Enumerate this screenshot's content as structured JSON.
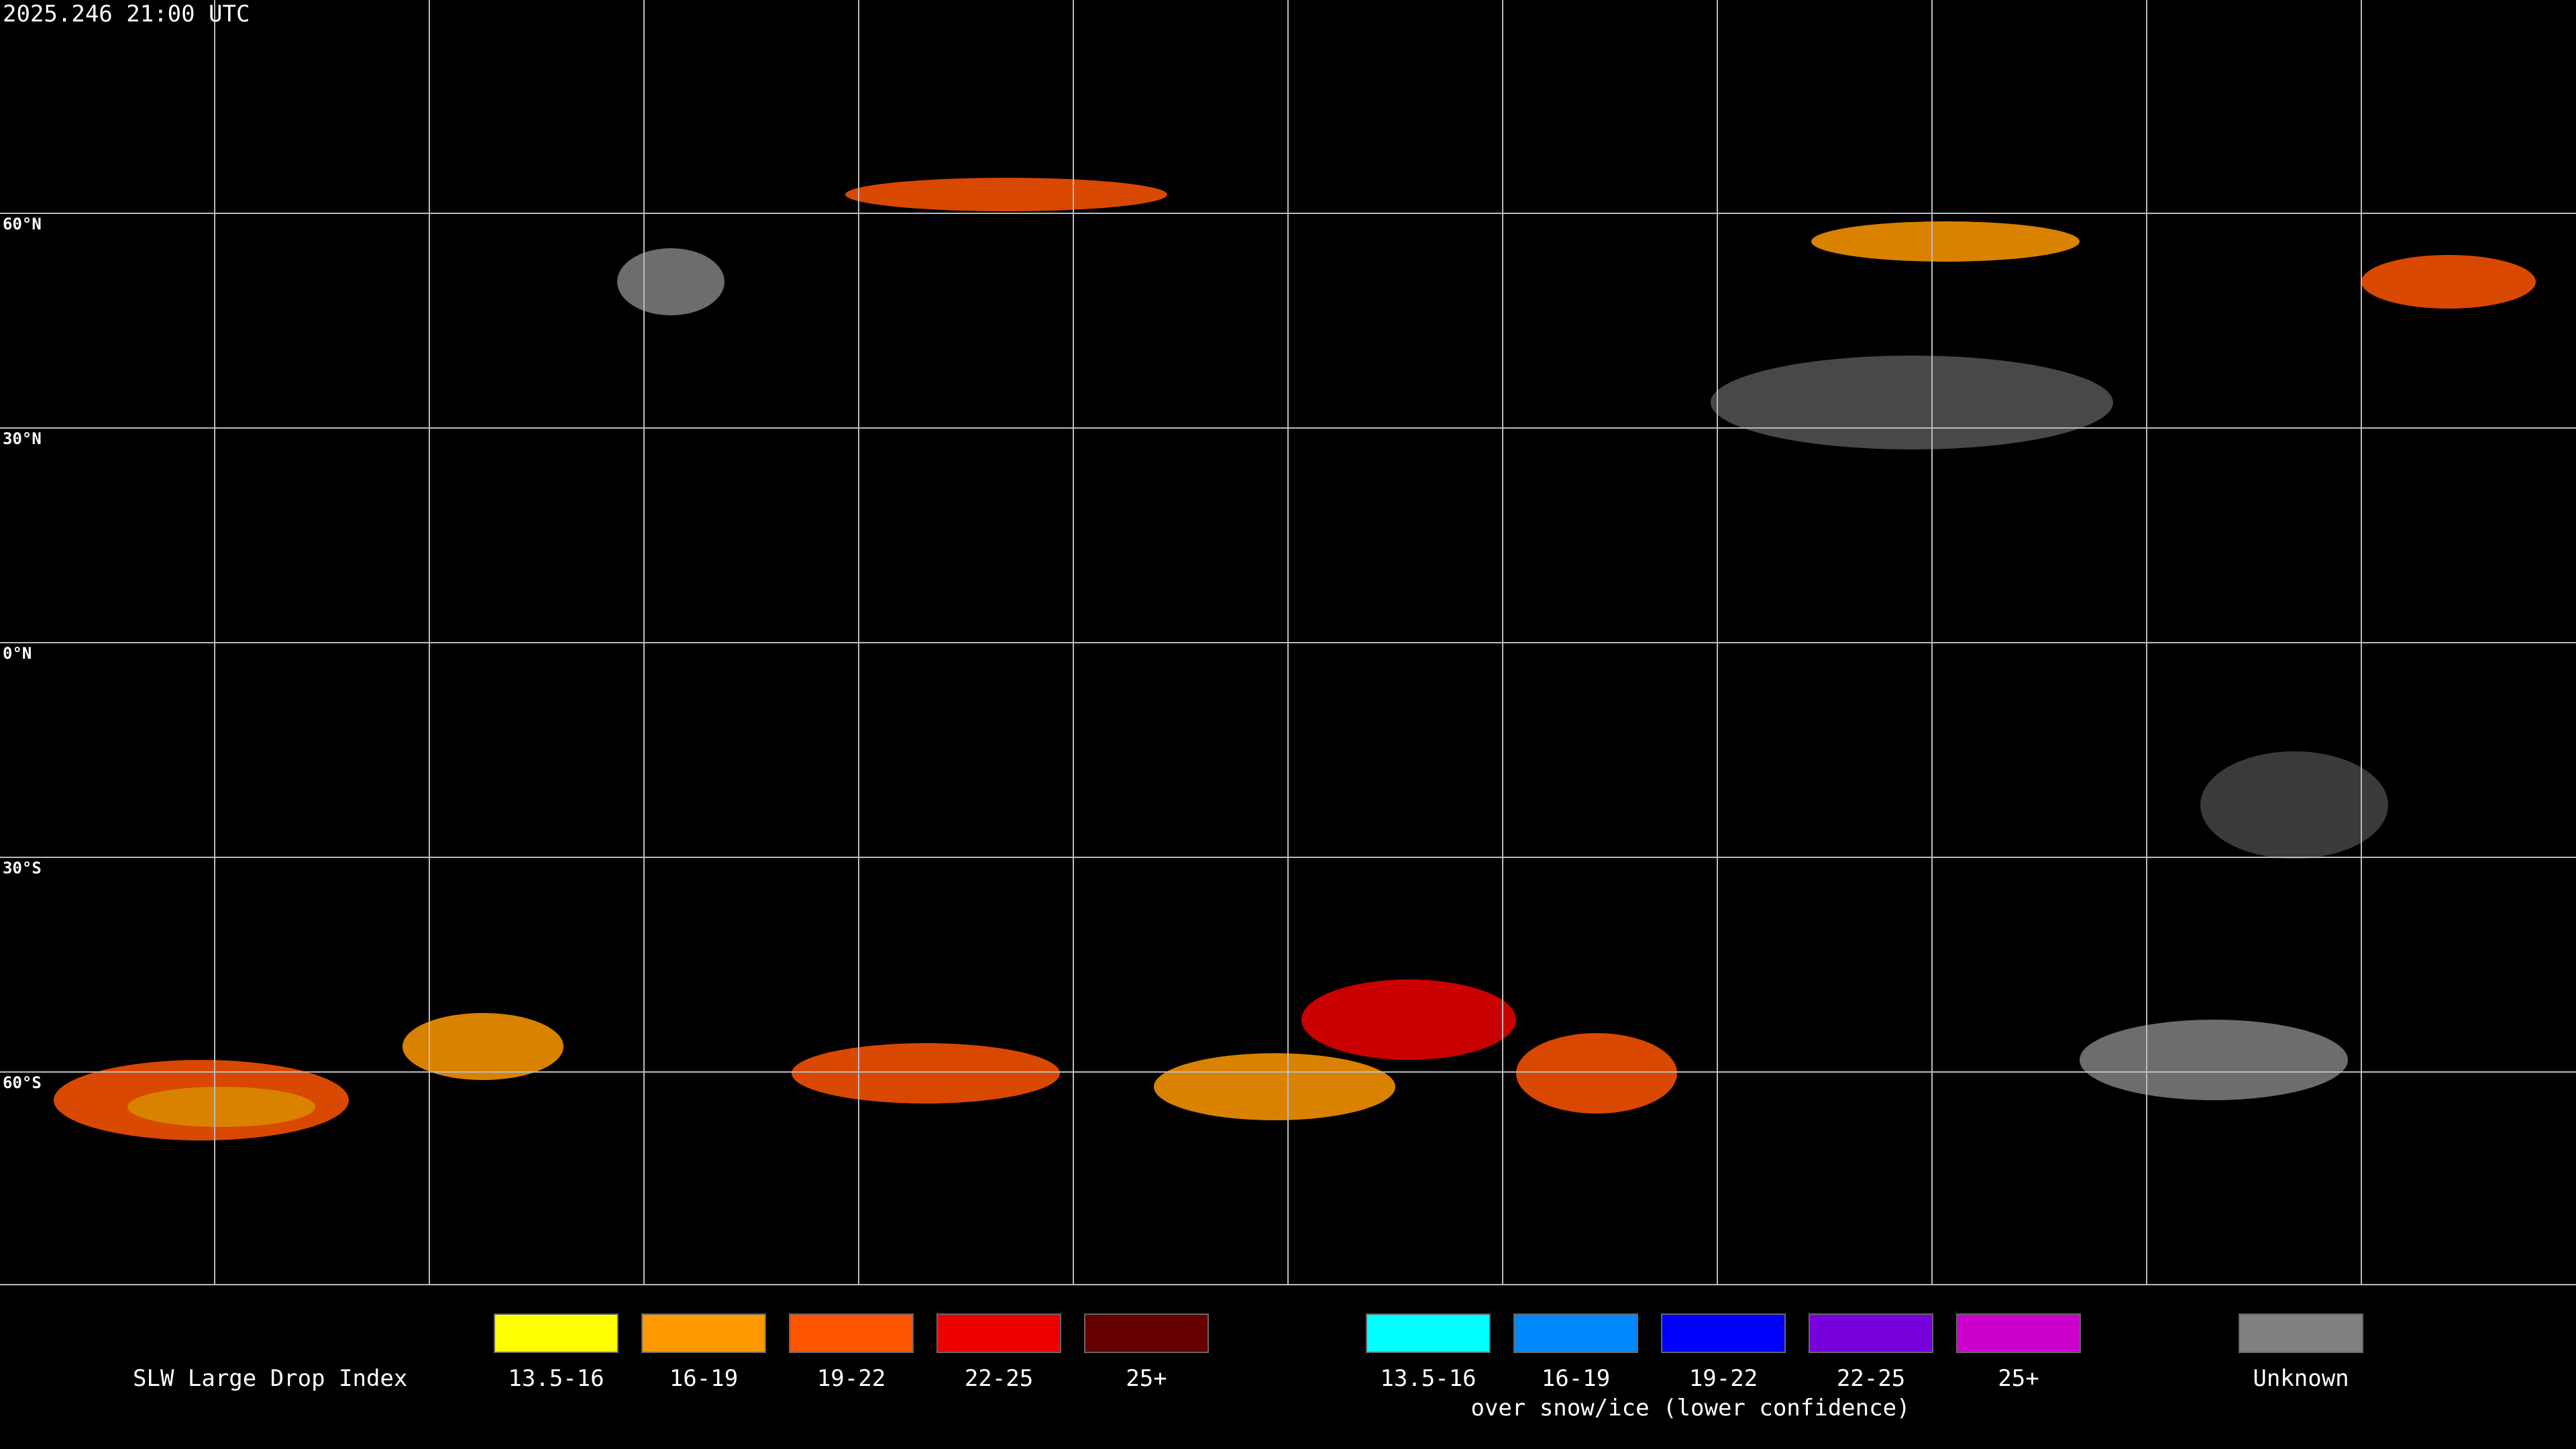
{
  "header": {
    "timestamp": "2025.246 21:00 UTC"
  },
  "map": {
    "latitude_labels": [
      "60°N",
      "30°N",
      "0°N",
      "30°S",
      "60°S"
    ]
  },
  "legend": {
    "title": "SLW Large Drop Index",
    "items": [
      {
        "label": "13.5-16",
        "color": "#ffff00"
      },
      {
        "label": "16-19",
        "color": "#ff9900"
      },
      {
        "label": "19-22",
        "color": "#ff5500"
      },
      {
        "label": "22-25",
        "color": "#ee0000"
      },
      {
        "label": "25+",
        "color": "#660000"
      }
    ],
    "snow_ice_items": [
      {
        "label": "13.5-16",
        "color": "#00ffff"
      },
      {
        "label": "16-19",
        "color": "#0088ff"
      },
      {
        "label": "19-22",
        "color": "#0000ff"
      },
      {
        "label": "22-25",
        "color": "#7700dd"
      },
      {
        "label": "25+",
        "color": "#cc00cc"
      }
    ],
    "snow_ice_note": "over snow/ice (lower confidence)",
    "unknown": {
      "label": "Unknown",
      "color": "#808080"
    }
  }
}
